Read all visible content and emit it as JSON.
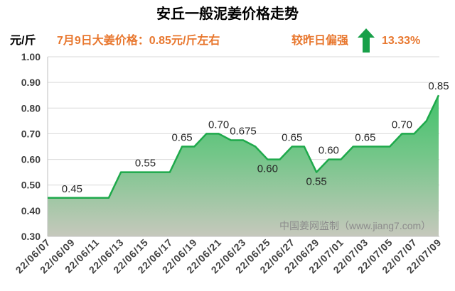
{
  "header": {
    "price_note": "7月9日大姜价格：0.85元/斤左右",
    "trend_label": "较昨日偏强",
    "trend_icon": "up-arrow-icon",
    "change_percent": "13.33%"
  },
  "watermark": "中国姜网监制（www.jiang7.com）",
  "colors": {
    "accent_text": "#E8772E",
    "trend_arrow": "#18A049",
    "series_line": "#1EA94B",
    "area_fill_top": "#22BF58",
    "area_fill_mid": "#74C689",
    "area_fill_bottom": "#C6C8BC",
    "grid": "#D9D9D9",
    "axis": "#BFBFBF"
  },
  "chart_data": {
    "type": "area",
    "title": "安丘一般泥姜价格走势",
    "ylabel": "元/斤",
    "xlabel": "",
    "ylim": [
      0.3,
      1.0
    ],
    "y_tick_labels": [
      "1.00",
      "0.90",
      "0.80",
      "0.70",
      "0.60",
      "0.50",
      "0.40",
      "0.30"
    ],
    "x_tick_labels": [
      "22/06/07",
      "22/06/09",
      "22/06/11",
      "22/06/13",
      "22/06/15",
      "22/06/17",
      "22/06/19",
      "22/06/21",
      "22/06/23",
      "22/06/25",
      "22/06/27",
      "22/06/29",
      "22/07/01",
      "22/07/03",
      "22/07/05",
      "22/07/07",
      "22/07/09"
    ],
    "grid": true,
    "legend": "none",
    "x": [
      "22/06/07",
      "22/06/08",
      "22/06/09",
      "22/06/10",
      "22/06/11",
      "22/06/12",
      "22/06/13",
      "22/06/14",
      "22/06/15",
      "22/06/16",
      "22/06/17",
      "22/06/18",
      "22/06/19",
      "22/06/20",
      "22/06/21",
      "22/06/22",
      "22/06/23",
      "22/06/24",
      "22/06/25",
      "22/06/26",
      "22/06/27",
      "22/06/28",
      "22/06/29",
      "22/06/30",
      "22/07/01",
      "22/07/02",
      "22/07/03",
      "22/07/04",
      "22/07/05",
      "22/07/06",
      "22/07/07",
      "22/07/08",
      "22/07/09"
    ],
    "values": [
      0.45,
      0.45,
      0.45,
      0.45,
      0.45,
      0.45,
      0.55,
      0.55,
      0.55,
      0.55,
      0.55,
      0.65,
      0.65,
      0.7,
      0.7,
      0.675,
      0.675,
      0.65,
      0.6,
      0.6,
      0.65,
      0.65,
      0.55,
      0.6,
      0.6,
      0.65,
      0.65,
      0.65,
      0.65,
      0.7,
      0.7,
      0.75,
      0.85
    ],
    "data_labels": [
      {
        "x": "22/06/09",
        "text": "0.45",
        "placement": "above"
      },
      {
        "x": "22/06/15",
        "text": "0.55",
        "placement": "above"
      },
      {
        "x": "22/06/18",
        "text": "0.65",
        "placement": "above"
      },
      {
        "x": "22/06/21",
        "text": "0.70",
        "placement": "above"
      },
      {
        "x": "22/06/23",
        "text": "0.675",
        "placement": "above"
      },
      {
        "x": "22/06/25",
        "text": "0.60",
        "placement": "below"
      },
      {
        "x": "22/06/27",
        "text": "0.65",
        "placement": "above"
      },
      {
        "x": "22/06/29",
        "text": "0.55",
        "placement": "below"
      },
      {
        "x": "22/06/30",
        "text": "0.60",
        "placement": "above"
      },
      {
        "x": "22/07/03",
        "text": "0.65",
        "placement": "above"
      },
      {
        "x": "22/07/06",
        "text": "0.70",
        "placement": "above"
      },
      {
        "x": "22/07/09",
        "text": "0.85",
        "placement": "above"
      }
    ]
  }
}
